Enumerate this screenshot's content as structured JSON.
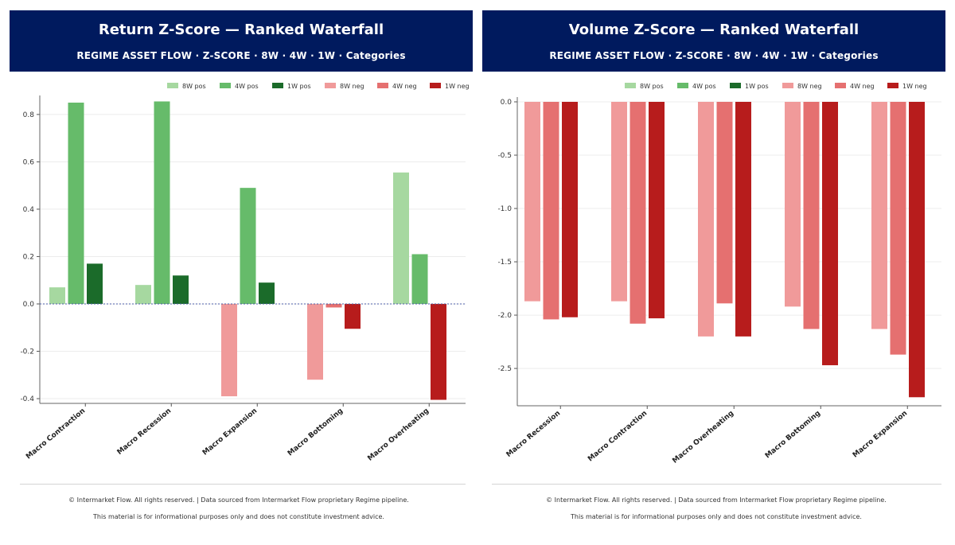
{
  "colors": {
    "header_bg": "#001a5e",
    "pos_8w": "#a6d8a0",
    "pos_4w": "#66bb6a",
    "pos_1w": "#1b6b2a",
    "neg_8w": "#f09a9a",
    "neg_4w": "#e57070",
    "neg_1w": "#b71c1c"
  },
  "legend": [
    "8W pos",
    "4W pos",
    "1W pos",
    "8W neg",
    "4W neg",
    "1W neg"
  ],
  "footer": {
    "line1": "© Intermarket Flow. All rights reserved.  |  Data sourced from Intermarket Flow proprietary Regime pipeline.",
    "line2": "This material is for informational purposes only and does not constitute investment advice."
  },
  "chart_data": [
    {
      "type": "bar",
      "title": "Return Z-Score — Ranked Waterfall",
      "subtitle": "REGIME ASSET FLOW  ·  Z-SCORE  ·  8W · 4W · 1W  ·  Categories",
      "xlabel": "",
      "ylabel": "",
      "ylim": [
        -0.42,
        0.86
      ],
      "yticks": [
        -0.4,
        -0.2,
        0.0,
        0.2,
        0.4,
        0.6,
        0.8
      ],
      "ytick_labels": [
        "-0.4",
        "-0.2",
        "0.0",
        "0.2",
        "0.4",
        "0.6",
        "0.8"
      ],
      "zero_line": true,
      "grid": true,
      "legend_position": "top-right",
      "categories": [
        "Macro Contraction",
        "Macro Recession",
        "Macro Expansion",
        "Macro Bottoming",
        "Macro Overheating"
      ],
      "series": [
        {
          "name": "8W",
          "values": [
            0.07,
            0.08,
            -0.39,
            -0.32,
            0.555
          ]
        },
        {
          "name": "4W",
          "values": [
            0.85,
            0.855,
            0.49,
            -0.015,
            0.21
          ]
        },
        {
          "name": "1W",
          "values": [
            0.17,
            0.12,
            0.09,
            -0.105,
            -0.405
          ]
        }
      ]
    },
    {
      "type": "bar",
      "title": "Volume Z-Score — Ranked Waterfall",
      "subtitle": "REGIME ASSET FLOW  ·  Z-SCORE  ·  8W · 4W · 1W  ·  Categories",
      "xlabel": "",
      "ylabel": "",
      "ylim": [
        -2.85,
        0.0
      ],
      "yticks": [
        0.0,
        -0.5,
        -1.0,
        -1.5,
        -2.0,
        -2.5
      ],
      "ytick_labels": [
        "0.0",
        "-0.5",
        "-1.0",
        "-1.5",
        "-2.0",
        "-2.5"
      ],
      "zero_line": false,
      "grid": true,
      "legend_position": "top-right",
      "categories": [
        "Macro Recession",
        "Macro Contraction",
        "Macro Overheating",
        "Macro Bottoming",
        "Macro Expansion"
      ],
      "series": [
        {
          "name": "8W",
          "values": [
            -1.87,
            -1.87,
            -2.2,
            -1.92,
            -2.13
          ]
        },
        {
          "name": "4W",
          "values": [
            -2.04,
            -2.08,
            -1.89,
            -2.13,
            -2.37
          ]
        },
        {
          "name": "1W",
          "values": [
            -2.02,
            -2.03,
            -2.2,
            -2.47,
            -2.77
          ]
        }
      ]
    }
  ]
}
